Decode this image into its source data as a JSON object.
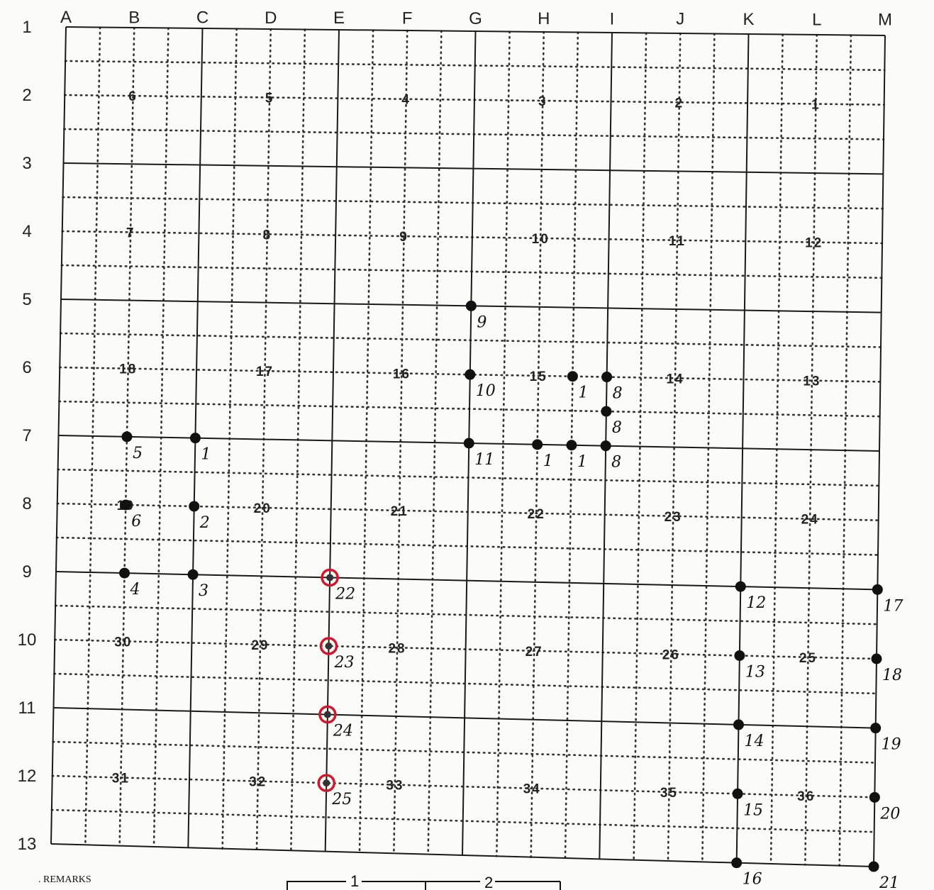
{
  "column_labels": [
    "A",
    "B",
    "C",
    "D",
    "E",
    "F",
    "G",
    "H",
    "I",
    "J",
    "K",
    "L",
    "M"
  ],
  "row_labels": [
    "1",
    "2",
    "3",
    "4",
    "5",
    "6",
    "7",
    "8",
    "9",
    "10",
    "11",
    "12",
    "13"
  ],
  "section_rows": [
    [
      "6",
      "5",
      "4",
      "3",
      "2",
      "1"
    ],
    [
      "7",
      "8",
      "9",
      "10",
      "11",
      "12"
    ],
    [
      "18",
      "17",
      "16",
      "15",
      "14",
      "13"
    ],
    [
      "19",
      "20",
      "21",
      "22",
      "23",
      "24"
    ],
    [
      "30",
      "29",
      "28",
      "27",
      "26",
      "25"
    ],
    [
      "31",
      "32",
      "33",
      "34",
      "35",
      "36"
    ]
  ],
  "points": [
    {
      "label": "1",
      "col": "C",
      "row": 7,
      "color": "black"
    },
    {
      "label": "2",
      "col": "C",
      "row": 8,
      "color": "black"
    },
    {
      "label": "3",
      "col": "C",
      "row": 9,
      "color": "black"
    },
    {
      "label": "4",
      "col": "B",
      "row": 9,
      "color": "black"
    },
    {
      "label": "5",
      "col": "B",
      "row": 7,
      "color": "black"
    },
    {
      "label": "6",
      "col": "B",
      "row": 8,
      "color": "black"
    },
    {
      "label": "9",
      "col": "G",
      "row": 5,
      "color": "black"
    },
    {
      "label": "10",
      "col": "G",
      "row": 6,
      "color": "black"
    },
    {
      "label": "11",
      "col": "G",
      "row": 7,
      "color": "black"
    },
    {
      "label": "1",
      "col": "H-I",
      "row": 6,
      "color": "black"
    },
    {
      "label": "8",
      "col": "I",
      "row": 6,
      "color": "black"
    },
    {
      "label": "8",
      "col": "I",
      "row": "6-7",
      "color": "black"
    },
    {
      "label": "8",
      "col": "I",
      "row": 7,
      "color": "black"
    },
    {
      "label": "1",
      "col": "H",
      "row": 7,
      "color": "black"
    },
    {
      "label": "1",
      "col": "H-I",
      "row": 7,
      "color": "black"
    },
    {
      "label": "12",
      "col": "K",
      "row": 9,
      "color": "black"
    },
    {
      "label": "13",
      "col": "K",
      "row": 10,
      "color": "black"
    },
    {
      "label": "14",
      "col": "K",
      "row": 11,
      "color": "black"
    },
    {
      "label": "15",
      "col": "K",
      "row": 12,
      "color": "black"
    },
    {
      "label": "16",
      "col": "K",
      "row": 13,
      "color": "black"
    },
    {
      "label": "17",
      "col": "M",
      "row": 9,
      "color": "black"
    },
    {
      "label": "18",
      "col": "M",
      "row": 10,
      "color": "black"
    },
    {
      "label": "19",
      "col": "M",
      "row": 11,
      "color": "black"
    },
    {
      "label": "20",
      "col": "M",
      "row": 12,
      "color": "black"
    },
    {
      "label": "21",
      "col": "M",
      "row": 13,
      "color": "black"
    },
    {
      "label": "22",
      "col": "E",
      "row": 9,
      "color": "red-circled"
    },
    {
      "label": "23",
      "col": "E",
      "row": 10,
      "color": "red-circled"
    },
    {
      "label": "24",
      "col": "E",
      "row": 11,
      "color": "red-circled"
    },
    {
      "label": "25",
      "col": "E",
      "row": 12,
      "color": "red-circled"
    }
  ],
  "footer": {
    "remarks": ". REMARKS",
    "scale_labels": [
      "1",
      "2"
    ]
  },
  "colors": {
    "ink": "#1a1a1a",
    "red_circle": "#d1182a",
    "paper": "#fbfbf8"
  }
}
